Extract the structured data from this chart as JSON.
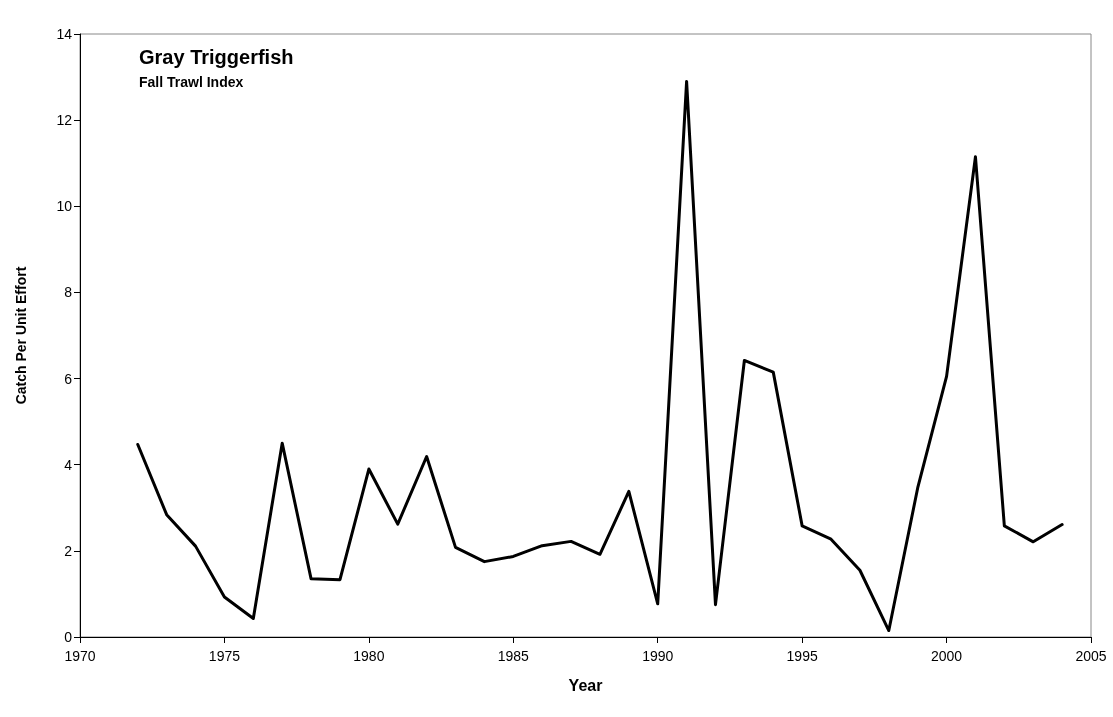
{
  "chart_data": {
    "type": "line",
    "title": "Gray Triggerfish",
    "subtitle": "Fall Trawl Index",
    "xlabel": "Year",
    "ylabel": "Catch Per Unit Effort",
    "x": [
      1972,
      1973,
      1974,
      1975,
      1976,
      1977,
      1978,
      1979,
      1980,
      1981,
      1982,
      1983,
      1984,
      1985,
      1986,
      1987,
      1988,
      1989,
      1990,
      1991,
      1992,
      1993,
      1994,
      1995,
      1996,
      1997,
      1998,
      1999,
      2000,
      2001,
      2002,
      2003,
      2004
    ],
    "series": [
      {
        "color": "#000000",
        "values": [
          4.47,
          2.84,
          2.11,
          0.93,
          0.43,
          4.5,
          1.35,
          1.33,
          3.9,
          2.62,
          4.19,
          2.08,
          1.75,
          1.87,
          2.12,
          2.22,
          1.92,
          3.38,
          0.77,
          12.9,
          0.75,
          6.42,
          6.15,
          2.58,
          2.27,
          1.55,
          0.15,
          3.46,
          6.05,
          11.15,
          2.58,
          2.21,
          2.61
        ]
      }
    ],
    "xlim": [
      1970,
      2005
    ],
    "xticks": [
      1970,
      1975,
      1980,
      1985,
      1990,
      1995,
      2000,
      2005
    ],
    "ylim": [
      0,
      14
    ],
    "yticks": [
      0,
      2,
      4,
      6,
      8,
      10,
      12,
      14
    ],
    "grid": false,
    "marker": "none",
    "line_style": "solid"
  }
}
